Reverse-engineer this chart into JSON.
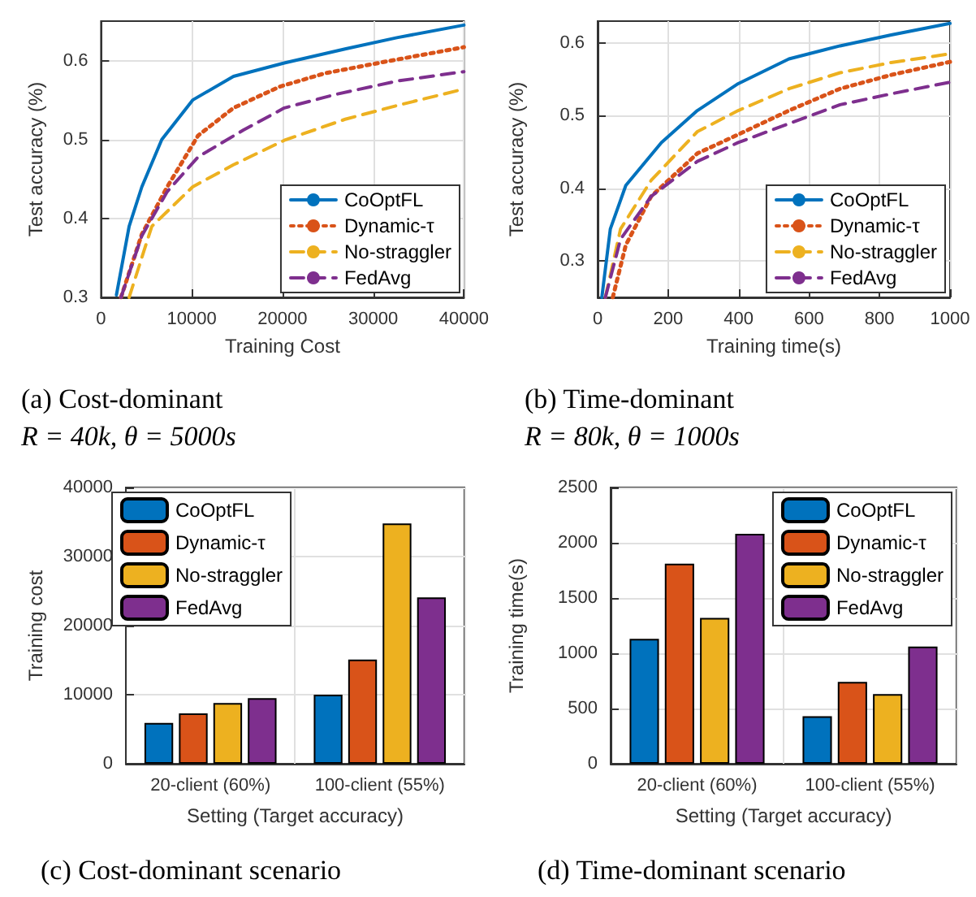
{
  "chart_data": [
    {
      "type": "line",
      "title": "(a) Cost-dominant",
      "subtitle": "R = 40k, θ = 5000s",
      "xlabel": "Training Cost",
      "ylabel": "Test accuracy (%)",
      "xlim": [
        0,
        40000
      ],
      "xticks": [
        0,
        10000,
        20000,
        30000,
        40000
      ],
      "ylim": [
        0.3,
        0.65
      ],
      "yticks": [
        0.3,
        0.4,
        0.5,
        0.6
      ],
      "grid": true,
      "legend": "bottom right",
      "marker": "none",
      "series": [
        {
          "name": "CoOptFL",
          "color": "#0072bd",
          "line_style": "solid",
          "x": [
            1700,
            3100,
            4500,
            6700,
            10100,
            14600,
            20200,
            27000,
            32600,
            40000
          ],
          "values": [
            0.303,
            0.39,
            0.44,
            0.5,
            0.55,
            0.58,
            0.597,
            0.615,
            0.629,
            0.645
          ]
        },
        {
          "name": "Dynamic-τ",
          "color": "#d95319",
          "line_style": "dotted",
          "x": [
            2200,
            4500,
            7300,
            10700,
            14600,
            19700,
            24700,
            31500,
            40000
          ],
          "values": [
            0.3,
            0.38,
            0.44,
            0.505,
            0.54,
            0.567,
            0.584,
            0.599,
            0.617
          ]
        },
        {
          "name": "No-straggler",
          "color": "#edb120",
          "line_style": "dashed",
          "x": [
            3100,
            5600,
            10100,
            14600,
            20200,
            27000,
            32600,
            40000
          ],
          "values": [
            0.3,
            0.39,
            0.44,
            0.468,
            0.499,
            0.526,
            0.543,
            0.564
          ]
        },
        {
          "name": "FedAvg",
          "color": "#7e2f8e",
          "line_style": "dashed",
          "x": [
            2200,
            4500,
            7300,
            10700,
            15700,
            20200,
            25800,
            32600,
            40000
          ],
          "values": [
            0.3,
            0.378,
            0.434,
            0.478,
            0.512,
            0.54,
            0.557,
            0.574,
            0.586
          ]
        }
      ]
    },
    {
      "type": "line",
      "title": "(b) Time-dominant",
      "subtitle": "R = 80k, θ = 1000s",
      "xlabel": "Training time(s)",
      "ylabel": "Test accuracy (%)",
      "xlim": [
        0,
        1000
      ],
      "xticks": [
        0,
        200,
        400,
        600,
        800,
        1000
      ],
      "ylim": [
        0.25,
        0.63
      ],
      "yticks": [
        0.3,
        0.4,
        0.5,
        0.6
      ],
      "grid": true,
      "legend": "bottom right",
      "marker": "none",
      "series": [
        {
          "name": "CoOptFL",
          "color": "#0072bd",
          "line_style": "solid",
          "x": [
            12,
            36,
            80,
            181,
            283,
            399,
            543,
            688,
            833,
            1000
          ],
          "values": [
            0.25,
            0.344,
            0.404,
            0.463,
            0.507,
            0.544,
            0.578,
            0.596,
            0.611,
            0.627
          ]
        },
        {
          "name": "Dynamic-τ",
          "color": "#d95319",
          "line_style": "dotted",
          "x": [
            43,
            80,
            152,
            283,
            399,
            543,
            688,
            833,
            1000
          ],
          "values": [
            0.25,
            0.322,
            0.389,
            0.448,
            0.474,
            0.507,
            0.537,
            0.556,
            0.574
          ]
        },
        {
          "name": "No-straggler",
          "color": "#edb120",
          "line_style": "dashed",
          "x": [
            22,
            65,
            152,
            283,
            399,
            543,
            688,
            833,
            1000
          ],
          "values": [
            0.25,
            0.344,
            0.411,
            0.478,
            0.507,
            0.537,
            0.559,
            0.573,
            0.585
          ]
        },
        {
          "name": "FedAvg",
          "color": "#7e2f8e",
          "line_style": "dashed",
          "x": [
            22,
            65,
            152,
            283,
            399,
            543,
            688,
            833,
            1000
          ],
          "values": [
            0.25,
            0.33,
            0.389,
            0.437,
            0.463,
            0.489,
            0.515,
            0.53,
            0.546
          ]
        }
      ]
    },
    {
      "type": "bar",
      "title": "(c) Cost-dominant scenario",
      "xlabel": "Setting (Target accuracy)",
      "ylabel": "Training cost",
      "categories": [
        "20-client (60%)",
        "100-client (55%)"
      ],
      "ylim": [
        0,
        40000
      ],
      "yticks": [
        0,
        10000,
        20000,
        30000,
        40000
      ],
      "grid": true,
      "legend": "top left",
      "series": [
        {
          "name": "CoOptFL",
          "color": "#0072bd",
          "values": [
            5900,
            10000
          ]
        },
        {
          "name": "Dynamic-τ",
          "color": "#d95319",
          "values": [
            7300,
            15100
          ]
        },
        {
          "name": "No-straggler",
          "color": "#edb120",
          "values": [
            8800,
            34800
          ]
        },
        {
          "name": "FedAvg",
          "color": "#7e2f8e",
          "values": [
            9500,
            24100
          ]
        }
      ]
    },
    {
      "type": "bar",
      "title": "(d) Time-dominant scenario",
      "xlabel": "Setting (Target accuracy)",
      "ylabel": "Training time(s)",
      "categories": [
        "20-client (60%)",
        "100-client (55%)"
      ],
      "ylim": [
        0,
        2500
      ],
      "yticks": [
        0,
        500,
        1000,
        1500,
        2000,
        2500
      ],
      "grid": true,
      "legend": "top right",
      "series": [
        {
          "name": "CoOptFL",
          "color": "#0072bd",
          "values": [
            1130,
            430
          ]
        },
        {
          "name": "Dynamic-τ",
          "color": "#d95319",
          "values": [
            1810,
            740
          ]
        },
        {
          "name": "No-straggler",
          "color": "#edb120",
          "values": [
            1320,
            630
          ]
        },
        {
          "name": "FedAvg",
          "color": "#7e2f8e",
          "values": [
            2080,
            1060
          ]
        }
      ]
    }
  ]
}
